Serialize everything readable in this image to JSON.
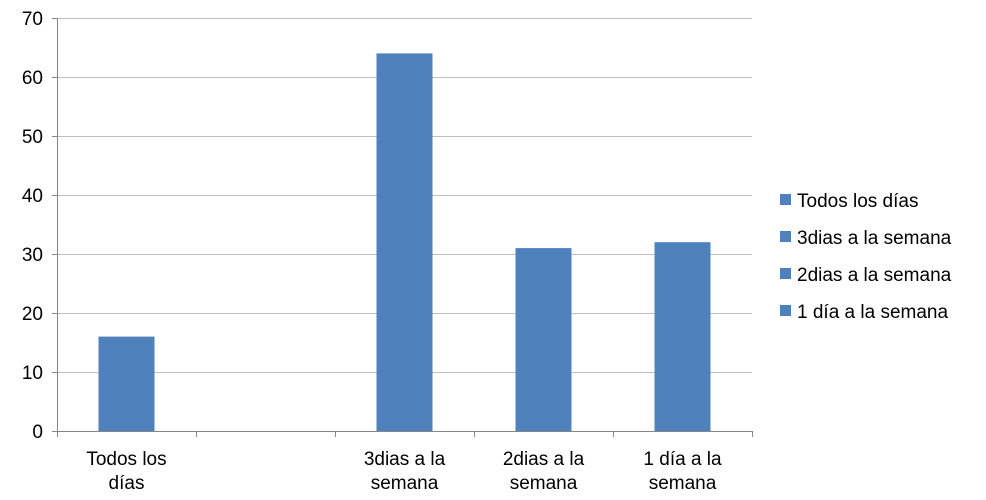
{
  "chart_data": {
    "type": "bar",
    "categories": [
      [
        "Todos los",
        "días"
      ],
      [
        "",
        ""
      ],
      [
        "3dias a la",
        "semana"
      ],
      [
        "2dias a la",
        "semana"
      ],
      [
        "1 día a la",
        "semana"
      ]
    ],
    "values": [
      16,
      null,
      64,
      31,
      32
    ],
    "ylim": [
      0,
      70
    ],
    "yticks": [
      0,
      10,
      20,
      30,
      40,
      50,
      60,
      70
    ],
    "grid": true,
    "legend": {
      "placement": "right",
      "entries": [
        "Todos los días",
        "3dias a la semana",
        "2dias a la semana",
        "1 día a la semana"
      ]
    },
    "bar_color": "#4F81BD",
    "grid_color": "#BFBFBF",
    "axis_color": "#868686"
  }
}
